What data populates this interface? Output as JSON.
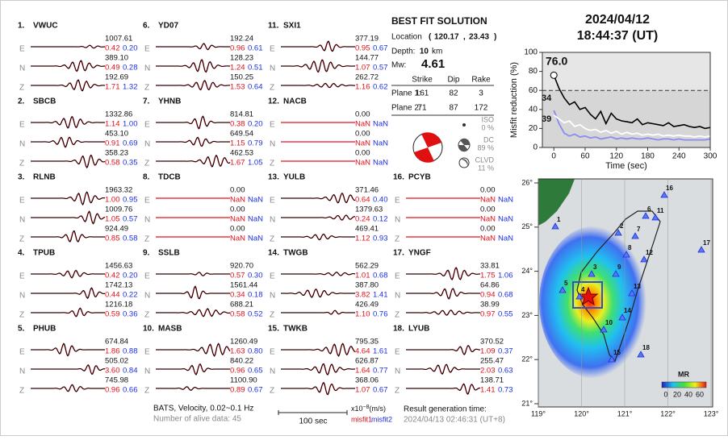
{
  "component_labels": [
    "E",
    "N",
    "Z"
  ],
  "stations": [
    {
      "number": "1.",
      "name": "VWUC",
      "traces": [
        {
          "amp": "1007.61",
          "misfit1": "0.42",
          "misfit2": "0.20"
        },
        {
          "amp": "389.10",
          "misfit1": "0.49",
          "misfit2": "0.28"
        },
        {
          "amp": "192.69",
          "misfit1": "1.71",
          "misfit2": "1.32"
        }
      ]
    },
    {
      "number": "2.",
      "name": "SBCB",
      "traces": [
        {
          "amp": "1332.86",
          "misfit1": "1.14",
          "misfit2": "1.00"
        },
        {
          "amp": "453.10",
          "misfit1": "0.91",
          "misfit2": "0.69"
        },
        {
          "amp": "358.23",
          "misfit1": "0.58",
          "misfit2": "0.35"
        }
      ]
    },
    {
      "number": "3.",
      "name": "RLNB",
      "traces": [
        {
          "amp": "1963.32",
          "misfit1": "1.00",
          "misfit2": "0.95"
        },
        {
          "amp": "1009.76",
          "misfit1": "1.05",
          "misfit2": "0.57"
        },
        {
          "amp": "924.49",
          "misfit1": "0.85",
          "misfit2": "0.58"
        }
      ]
    },
    {
      "number": "4.",
      "name": "TPUB",
      "traces": [
        {
          "amp": "1456.63",
          "misfit1": "0.42",
          "misfit2": "0.20"
        },
        {
          "amp": "1742.13",
          "misfit1": "0.44",
          "misfit2": "0.22"
        },
        {
          "amp": "1216.18",
          "misfit1": "0.59",
          "misfit2": "0.36"
        }
      ]
    },
    {
      "number": "5.",
      "name": "PHUB",
      "traces": [
        {
          "amp": "674.84",
          "misfit1": "1.86",
          "misfit2": "0.88"
        },
        {
          "amp": "505.02",
          "misfit1": "3.60",
          "misfit2": "0.84"
        },
        {
          "amp": "745.98",
          "misfit1": "0.96",
          "misfit2": "0.66"
        }
      ]
    },
    {
      "number": "6.",
      "name": "YD07",
      "traces": [
        {
          "amp": "192.24",
          "misfit1": "0.96",
          "misfit2": "0.61"
        },
        {
          "amp": "128.23",
          "misfit1": "1.24",
          "misfit2": "0.51"
        },
        {
          "amp": "150.25",
          "misfit1": "1.53",
          "misfit2": "0.64"
        }
      ]
    },
    {
      "number": "7.",
      "name": "YHNB",
      "traces": [
        {
          "amp": "814.81",
          "misfit1": "0.38",
          "misfit2": "0.20"
        },
        {
          "amp": "649.54",
          "misfit1": "1.15",
          "misfit2": "0.79"
        },
        {
          "amp": "462.53",
          "misfit1": "1.67",
          "misfit2": "1.05"
        }
      ]
    },
    {
      "number": "8.",
      "name": "TDCB",
      "traces": [
        {
          "amp": "0.00",
          "misfit1": "NaN",
          "misfit2": "NaN"
        },
        {
          "amp": "0.00",
          "misfit1": "NaN",
          "misfit2": "NaN"
        },
        {
          "amp": "0.00",
          "misfit1": "NaN",
          "misfit2": "NaN"
        }
      ]
    },
    {
      "number": "9.",
      "name": "SSLB",
      "traces": [
        {
          "amp": "920.70",
          "misfit1": "0.57",
          "misfit2": "0.30"
        },
        {
          "amp": "1561.44",
          "misfit1": "0.34",
          "misfit2": "0.18"
        },
        {
          "amp": "688.21",
          "misfit1": "0.58",
          "misfit2": "0.52"
        }
      ]
    },
    {
      "number": "10.",
      "name": "MASB",
      "traces": [
        {
          "amp": "1260.49",
          "misfit1": "1.63",
          "misfit2": "0.80"
        },
        {
          "amp": "840.22",
          "misfit1": "0.96",
          "misfit2": "0.65"
        },
        {
          "amp": "1100.90",
          "misfit1": "0.89",
          "misfit2": "0.67"
        }
      ]
    },
    {
      "number": "11.",
      "name": "SXI1",
      "traces": [
        {
          "amp": "377.19",
          "misfit1": "0.95",
          "misfit2": "0.67"
        },
        {
          "amp": "144.77",
          "misfit1": "1.07",
          "misfit2": "0.57"
        },
        {
          "amp": "262.72",
          "misfit1": "1.16",
          "misfit2": "0.62"
        }
      ]
    },
    {
      "number": "12.",
      "name": "NACB",
      "traces": [
        {
          "amp": "0.00",
          "misfit1": "NaN",
          "misfit2": "NaN"
        },
        {
          "amp": "0.00",
          "misfit1": "NaN",
          "misfit2": "NaN"
        },
        {
          "amp": "0.00",
          "misfit1": "NaN",
          "misfit2": "NaN"
        }
      ]
    },
    {
      "number": "13.",
      "name": "YULB",
      "traces": [
        {
          "amp": "371.46",
          "misfit1": "0.64",
          "misfit2": "0.40"
        },
        {
          "amp": "1379.63",
          "misfit1": "0.24",
          "misfit2": "0.12"
        },
        {
          "amp": "469.41",
          "misfit1": "1.12",
          "misfit2": "0.93"
        }
      ]
    },
    {
      "number": "14.",
      "name": "TWGB",
      "traces": [
        {
          "amp": "562.29",
          "misfit1": "1.01",
          "misfit2": "0.68"
        },
        {
          "amp": "387.80",
          "misfit1": "3.82",
          "misfit2": "1.41"
        },
        {
          "amp": "426.49",
          "misfit1": "1.10",
          "misfit2": "0.76"
        }
      ]
    },
    {
      "number": "15.",
      "name": "TWKB",
      "traces": [
        {
          "amp": "795.35",
          "misfit1": "4.64",
          "misfit2": "1.61"
        },
        {
          "amp": "626.87",
          "misfit1": "1.64",
          "misfit2": "0.77"
        },
        {
          "amp": "368.06",
          "misfit1": "1.07",
          "misfit2": "0.67"
        }
      ]
    },
    {
      "number": "16.",
      "name": "PCYB",
      "traces": [
        {
          "amp": "0.00",
          "misfit1": "NaN",
          "misfit2": "NaN"
        },
        {
          "amp": "0.00",
          "misfit1": "NaN",
          "misfit2": "NaN"
        },
        {
          "amp": "0.00",
          "misfit1": "NaN",
          "misfit2": "NaN"
        }
      ]
    },
    {
      "number": "17.",
      "name": "YNGF",
      "traces": [
        {
          "amp": "33.81",
          "misfit1": "1.75",
          "misfit2": "1.06"
        },
        {
          "amp": "64.86",
          "misfit1": "0.94",
          "misfit2": "0.68"
        },
        {
          "amp": "38.99",
          "misfit1": "0.97",
          "misfit2": "0.55"
        }
      ]
    },
    {
      "number": "18.",
      "name": "LYUB",
      "traces": [
        {
          "amp": "370.52",
          "misfit1": "1.09",
          "misfit2": "0.37"
        },
        {
          "amp": "255.47",
          "misfit1": "2.03",
          "misfit2": "0.63"
        },
        {
          "amp": "138.71",
          "misfit1": "1.41",
          "misfit2": "0.73"
        }
      ]
    }
  ],
  "best_fit": {
    "title": "BEST FIT SOLUTION",
    "location_label": "Location",
    "location_open": "(",
    "lon": "120.17",
    "sep": ",",
    "lat": "23.43",
    "location_close": ")",
    "depth_label": "Depth:",
    "depth": "10",
    "depth_unit": "km",
    "mw_label": "Mw:",
    "mw": "4.61",
    "headers": [
      "Strike",
      "Dip",
      "Rake"
    ],
    "planes": [
      {
        "label": "Plane 1:",
        "values": [
          "161",
          "82",
          "3"
        ]
      },
      {
        "label": "Plane 2:",
        "values": [
          "71",
          "87",
          "172"
        ]
      }
    ],
    "components": [
      {
        "name": "ISO",
        "percent": "0 %"
      },
      {
        "name": "DC",
        "percent": "89 %"
      },
      {
        "name": "CLVD",
        "percent": "11 %"
      }
    ]
  },
  "event": {
    "date": "2024/04/12",
    "time": "18:44:37  (UT)"
  },
  "misfit_chart": {
    "type": "line",
    "y_label": "Misfit reduction (%)",
    "x_label": "Time (sec)",
    "xlim": [
      -22,
      300
    ],
    "ylim": [
      0,
      100
    ],
    "xticks": [
      0,
      60,
      120,
      180,
      240,
      300
    ],
    "yticks": [
      0,
      20,
      40,
      60,
      80,
      100
    ],
    "threshold": 60,
    "x": [
      0,
      10,
      20,
      30,
      40,
      50,
      60,
      70,
      80,
      90,
      100,
      110,
      120,
      130,
      140,
      150,
      160,
      170,
      180,
      190,
      200,
      210,
      220,
      230,
      240,
      250,
      260,
      270,
      280,
      290,
      300
    ],
    "series": [
      {
        "color": "#000000",
        "values": [
          76,
          62,
          52,
          45,
          48,
          40,
          42,
          35,
          30,
          38,
          25,
          36,
          30,
          28,
          27,
          26,
          30,
          24,
          26,
          25,
          24,
          23,
          26,
          22,
          23,
          24,
          22,
          21,
          22,
          20,
          21
        ]
      },
      {
        "color": "#ffffff",
        "values": [
          34,
          30,
          26,
          28,
          22,
          24,
          20,
          18,
          19,
          16,
          18,
          15,
          17,
          14,
          16,
          14,
          15,
          13,
          14,
          13,
          14,
          12,
          13,
          12,
          13,
          12,
          12,
          11,
          12,
          11,
          12
        ]
      },
      {
        "color": "#8a8cf0",
        "values": [
          39,
          25,
          15,
          12,
          14,
          11,
          12,
          10,
          11,
          9,
          10,
          11,
          9,
          10,
          9,
          10,
          9,
          9,
          10,
          9,
          8,
          9,
          9,
          8,
          9,
          8,
          8,
          8,
          8,
          8,
          9
        ]
      }
    ],
    "annotations": [
      {
        "text": "76.0",
        "color": "#e0101a"
      },
      {
        "text": "34",
        "color": "#aaaaaa"
      },
      {
        "text": "39",
        "color": "#8a8cf0"
      }
    ]
  },
  "map": {
    "xlim": [
      119,
      123
    ],
    "ylim": [
      21,
      26
    ],
    "xticks": [
      {
        "value": 119,
        "label": "119°"
      },
      {
        "value": 120,
        "label": "120°"
      },
      {
        "value": 121,
        "label": "121°"
      },
      {
        "value": 122,
        "label": "122°"
      },
      {
        "value": 123,
        "label": "123°"
      }
    ],
    "yticks": [
      {
        "value": 21,
        "label": "21°"
      },
      {
        "value": 22,
        "label": "22°"
      },
      {
        "value": 23,
        "label": "23°"
      },
      {
        "value": 24,
        "label": "24°"
      },
      {
        "value": 25,
        "label": "25°"
      },
      {
        "value": 26,
        "label": "26°"
      }
    ],
    "station_labels": [
      "1",
      "2",
      "3",
      "4",
      "5",
      "6",
      "7",
      "8",
      "9",
      "10",
      "11",
      "12",
      "13",
      "14",
      "15",
      "16",
      "17",
      "18"
    ],
    "colorbar": {
      "title": "MR",
      "ticks": [
        "0",
        "20",
        "40",
        "60"
      ]
    }
  },
  "footer": {
    "filter": "BATS, Velocity, 0.02~0.1 Hz",
    "alive": "Number of alive data: 45",
    "scale": "100 sec",
    "unit_base": "x10",
    "unit_exp": "−8",
    "unit_rest": "(m/s)",
    "misfit1": "misfit1",
    "misfit2": "misfit2",
    "result_label": "Result generation time:",
    "result_time": "2024/04/13 02:46:31 (UT+8)"
  }
}
